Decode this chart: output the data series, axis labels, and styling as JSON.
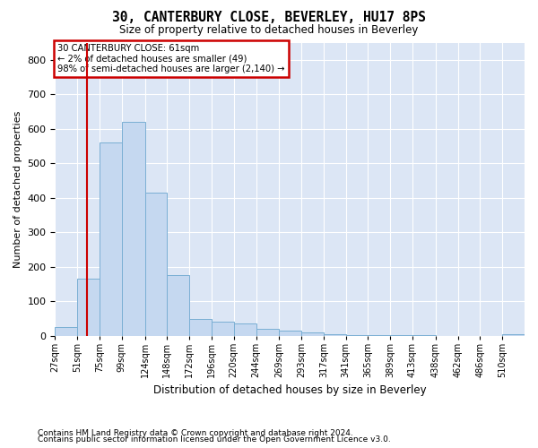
{
  "title": "30, CANTERBURY CLOSE, BEVERLEY, HU17 8PS",
  "subtitle": "Size of property relative to detached houses in Beverley",
  "xlabel": "Distribution of detached houses by size in Beverley",
  "ylabel": "Number of detached properties",
  "bin_labels": [
    "27sqm",
    "51sqm",
    "75sqm",
    "99sqm",
    "124sqm",
    "148sqm",
    "172sqm",
    "196sqm",
    "220sqm",
    "244sqm",
    "269sqm",
    "293sqm",
    "317sqm",
    "341sqm",
    "365sqm",
    "389sqm",
    "413sqm",
    "438sqm",
    "462sqm",
    "486sqm",
    "510sqm"
  ],
  "bar_heights": [
    25,
    165,
    560,
    620,
    415,
    175,
    50,
    40,
    35,
    20,
    15,
    10,
    5,
    3,
    2,
    2,
    1,
    0,
    0,
    0,
    5
  ],
  "bar_color": "#c5d8f0",
  "bar_edge_color": "#7aafd4",
  "ylim": [
    0,
    850
  ],
  "yticks": [
    0,
    100,
    200,
    300,
    400,
    500,
    600,
    700,
    800
  ],
  "bin_starts": [
    27,
    51,
    75,
    99,
    124,
    148,
    172,
    196,
    220,
    244,
    269,
    293,
    317,
    341,
    365,
    389,
    413,
    438,
    462,
    486,
    510
  ],
  "property_size": 61,
  "property_line_color": "#cc0000",
  "annotation_line1": "30 CANTERBURY CLOSE: 61sqm",
  "annotation_line2": "← 2% of detached houses are smaller (49)",
  "annotation_line3": "98% of semi-detached houses are larger (2,140) →",
  "annotation_box_color": "#cc0000",
  "footnote1": "Contains HM Land Registry data © Crown copyright and database right 2024.",
  "footnote2": "Contains public sector information licensed under the Open Government Licence v3.0.",
  "fig_facecolor": "#ffffff",
  "plot_bg_color": "#dce6f5"
}
